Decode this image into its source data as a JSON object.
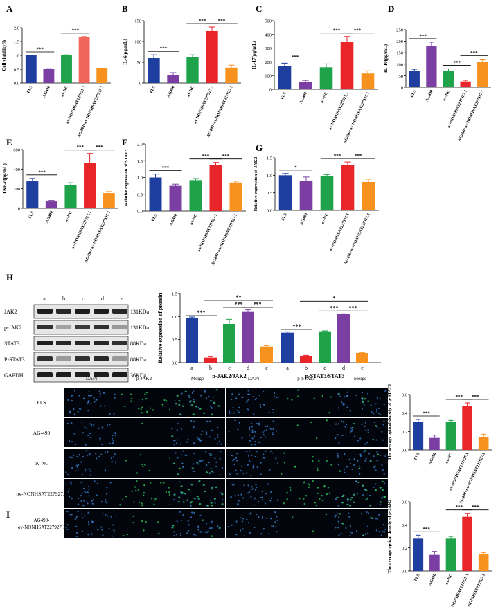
{
  "colors": {
    "blue": "#1f3fa0",
    "purple": "#7b3fa3",
    "green": "#1fa34a",
    "red": "#e8262a",
    "orange": "#f7921e",
    "salmon": "#f0665a"
  },
  "group_labels": [
    "FLS",
    "AG490",
    "ov-NC",
    "ov-NONHSAT227927.1",
    "AG490+ov-NONHSAT227927.1"
  ],
  "h_labels": [
    "a",
    "b",
    "c",
    "d",
    "e"
  ],
  "wb_labels": [
    "JAK2",
    "p-JAK2",
    "STAT3",
    "P-STAT3",
    "GAPDH"
  ],
  "wb_sizes": [
    "131KDa",
    "131KDa",
    "88KDa",
    "88KDa",
    "36KDa"
  ],
  "if_cols_left": [
    "DAPI",
    "p-JAK2",
    "Merge"
  ],
  "if_cols_right": [
    "DAPI",
    "p-STAT3",
    "Merge"
  ],
  "if_rows": [
    "FLS",
    "AG-490",
    "ov-NC",
    "ov-NONHSAT227927.1",
    "AG490-ov-NONHSAT227927.1"
  ],
  "panel_letters": [
    "A",
    "B",
    "C",
    "D",
    "E",
    "F",
    "G",
    "H",
    "I"
  ],
  "chart_data": [
    {
      "id": "A",
      "type": "bar",
      "ylabel": "Cell viability%",
      "ylim": [
        0,
        2.0
      ],
      "ticks": [
        0.0,
        0.5,
        1.0,
        1.5,
        2.0
      ],
      "values": [
        1.0,
        0.5,
        1.0,
        1.66,
        0.55
      ],
      "errors": [
        0,
        0.02,
        0.02,
        0.02,
        0
      ],
      "sig": [
        {
          "a": 0,
          "b": 1,
          "t": "***"
        },
        {
          "a": 2,
          "b": 3,
          "t": "***"
        }
      ]
    },
    {
      "id": "B",
      "type": "bar",
      "ylabel": "IL-6(pg/mL)",
      "ylim": [
        0,
        150
      ],
      "ticks": [
        0,
        50,
        100,
        150
      ],
      "values": [
        60,
        20,
        63,
        125,
        37
      ],
      "errors": [
        8,
        5,
        5,
        10,
        6
      ],
      "sig": [
        {
          "a": 0,
          "b": 1,
          "t": "***"
        },
        {
          "a": 2,
          "b": 3,
          "t": "***"
        },
        {
          "a": 3,
          "b": 4,
          "t": "***"
        }
      ]
    },
    {
      "id": "C",
      "type": "bar",
      "ylabel": "IL-17(pg/mL)",
      "ylim": [
        0,
        500
      ],
      "ticks": [
        0,
        100,
        200,
        300,
        400,
        500
      ],
      "values": [
        170,
        55,
        160,
        345,
        115
      ],
      "errors": [
        20,
        10,
        25,
        40,
        20
      ],
      "sig": [
        {
          "a": 0,
          "b": 1,
          "t": "***"
        },
        {
          "a": 2,
          "b": 3,
          "t": "***"
        },
        {
          "a": 3,
          "b": 4,
          "t": "***"
        }
      ]
    },
    {
      "id": "D",
      "type": "bar",
      "ylabel": "IL-10(pg/mL)",
      "ylim": [
        0,
        250
      ],
      "ticks": [
        0,
        50,
        100,
        150,
        200,
        250
      ],
      "values": [
        72,
        178,
        70,
        25,
        110
      ],
      "errors": [
        6,
        18,
        10,
        5,
        12
      ],
      "sig": [
        {
          "a": 0,
          "b": 1,
          "t": "***"
        },
        {
          "a": 2,
          "b": 3,
          "t": "***"
        },
        {
          "a": 3,
          "b": 4,
          "t": "***"
        }
      ]
    },
    {
      "id": "E",
      "type": "bar",
      "ylabel": "TNF-α(pg/mL)",
      "ylim": [
        0,
        600
      ],
      "ticks": [
        0,
        200,
        400,
        600
      ],
      "values": [
        275,
        70,
        235,
        460,
        155
      ],
      "errors": [
        30,
        10,
        25,
        100,
        15
      ],
      "sig": [
        {
          "a": 0,
          "b": 1,
          "t": "***"
        },
        {
          "a": 2,
          "b": 3,
          "t": "***"
        },
        {
          "a": 3,
          "b": 4,
          "t": "***"
        }
      ]
    },
    {
      "id": "F",
      "type": "bar",
      "ylabel": "Relative expression of STAT3",
      "ylim": [
        0,
        2.0
      ],
      "ticks": [
        0.0,
        0.5,
        1.0,
        1.5,
        2.0
      ],
      "values": [
        1.0,
        0.75,
        0.92,
        1.37,
        0.85
      ],
      "errors": [
        0.1,
        0.05,
        0.05,
        0.08,
        0.04
      ],
      "sig": [
        {
          "a": 0,
          "b": 1,
          "t": "***"
        },
        {
          "a": 2,
          "b": 3,
          "t": "***"
        },
        {
          "a": 3,
          "b": 4,
          "t": "***"
        }
      ]
    },
    {
      "id": "G",
      "type": "bar",
      "ylabel": "Relative expression of JAK2",
      "ylim": [
        0,
        1.5
      ],
      "ticks": [
        0.0,
        0.5,
        1.0,
        1.5
      ],
      "values": [
        1.0,
        0.85,
        0.97,
        1.3,
        0.81
      ],
      "errors": [
        0.05,
        0.1,
        0.05,
        0.08,
        0.08
      ],
      "sig": [
        {
          "a": 0,
          "b": 1,
          "t": "*"
        },
        {
          "a": 2,
          "b": 3,
          "t": "***"
        },
        {
          "a": 3,
          "b": 4,
          "t": "***"
        }
      ]
    },
    {
      "id": "H",
      "type": "bar",
      "ylabel": "Relative expression of protein",
      "ylim": [
        0,
        1.5
      ],
      "ticks": [
        0.0,
        0.5,
        1.0,
        1.5
      ],
      "groups": [
        "p-JAK2/JAK2",
        "p-STAT3/STAT3"
      ],
      "values": [
        [
          0.96,
          0.11,
          0.84,
          1.1,
          0.35
        ],
        [
          0.65,
          0.15,
          0.68,
          1.05,
          0.21
        ]
      ],
      "errors": [
        [
          0.03,
          0.02,
          0.1,
          0.05,
          0.02
        ],
        [
          0.02,
          0.01,
          0.01,
          0.01,
          0.01
        ]
      ]
    },
    {
      "id": "I1",
      "type": "bar",
      "ylabel": "The average optical density of p-STAT3",
      "ylim": [
        0,
        0.6
      ],
      "ticks": [
        0.0,
        0.2,
        0.4,
        0.6
      ],
      "values": [
        0.3,
        0.13,
        0.3,
        0.48,
        0.14
      ],
      "errors": [
        0.03,
        0.03,
        0.02,
        0.03,
        0.03
      ],
      "sig": [
        {
          "a": 0,
          "b": 1,
          "t": "***"
        },
        {
          "a": 2,
          "b": 3,
          "t": "***"
        },
        {
          "a": 3,
          "b": 4,
          "t": "***"
        }
      ]
    },
    {
      "id": "I2",
      "type": "bar",
      "ylabel": "The average optical density of p-JAK2",
      "ylim": [
        0,
        0.6
      ],
      "ticks": [
        0.0,
        0.2,
        0.4,
        0.6
      ],
      "values": [
        0.28,
        0.14,
        0.28,
        0.47,
        0.15
      ],
      "errors": [
        0.03,
        0.03,
        0.02,
        0.03,
        0.01
      ],
      "sig": [
        {
          "a": 0,
          "b": 1,
          "t": "***"
        },
        {
          "a": 2,
          "b": 3,
          "t": "***"
        },
        {
          "a": 3,
          "b": 4,
          "t": "***"
        }
      ]
    }
  ]
}
